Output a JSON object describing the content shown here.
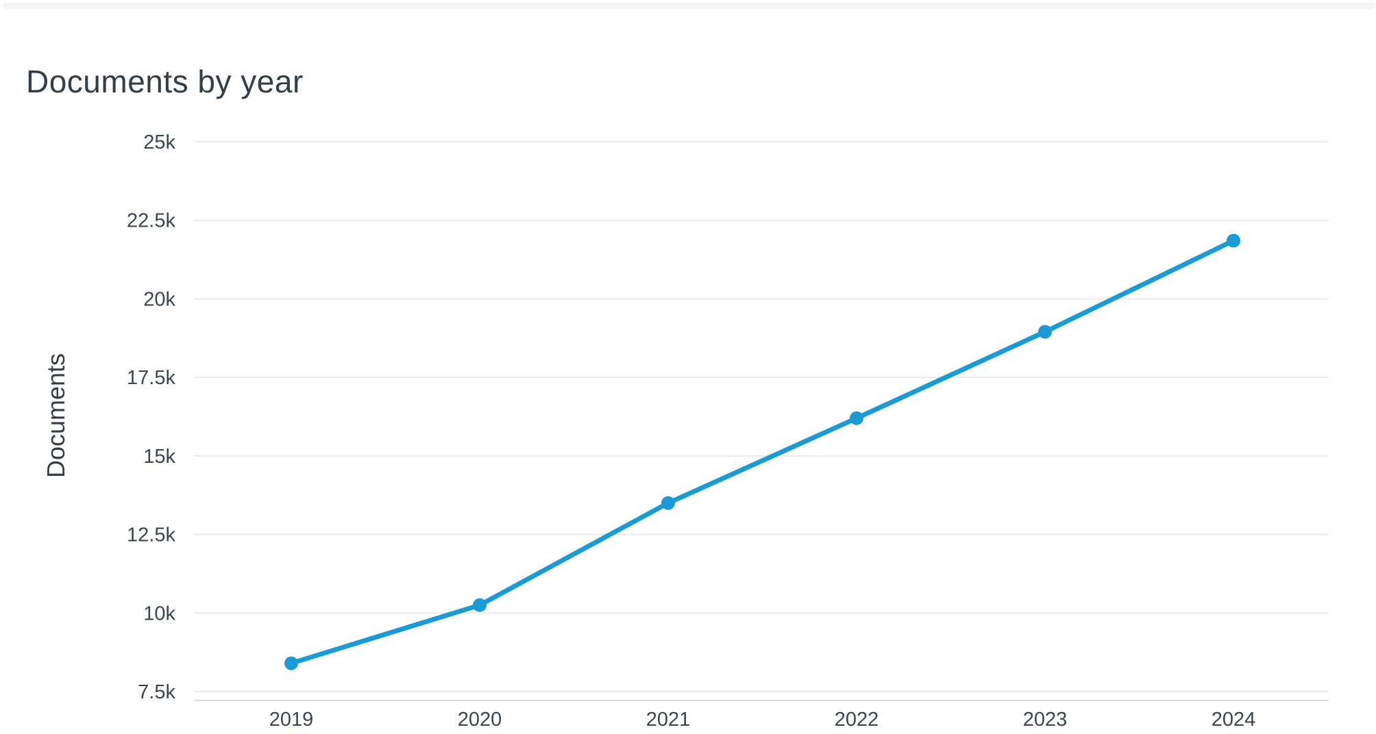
{
  "page": {
    "top_bar_color": "#f5f5f6",
    "background_color": "#ffffff"
  },
  "chart_data": {
    "type": "line",
    "title": "Documents by year",
    "xlabel": "",
    "ylabel": "Documents",
    "categories": [
      "2019",
      "2020",
      "2021",
      "2022",
      "2023",
      "2024"
    ],
    "series": [
      {
        "name": "Documents",
        "values": [
          8400,
          10250,
          13500,
          16200,
          18950,
          21850
        ]
      }
    ],
    "y_ticks": {
      "values": [
        7500,
        10000,
        12500,
        15000,
        17500,
        20000,
        22500,
        25000
      ],
      "labels": [
        "7.5k",
        "10k",
        "12.5k",
        "15k",
        "17.5k",
        "20k",
        "22.5k",
        "25k"
      ]
    },
    "ylim": [
      7200,
      25000
    ],
    "grid": "horizontal",
    "legend": "none",
    "marker": "circle",
    "colors": {
      "line": "#1a9bd5",
      "grid": "#e9eaea",
      "axis": "#d9dbdc",
      "tick_text": "#3c4650",
      "title_text": "#333e48"
    }
  }
}
